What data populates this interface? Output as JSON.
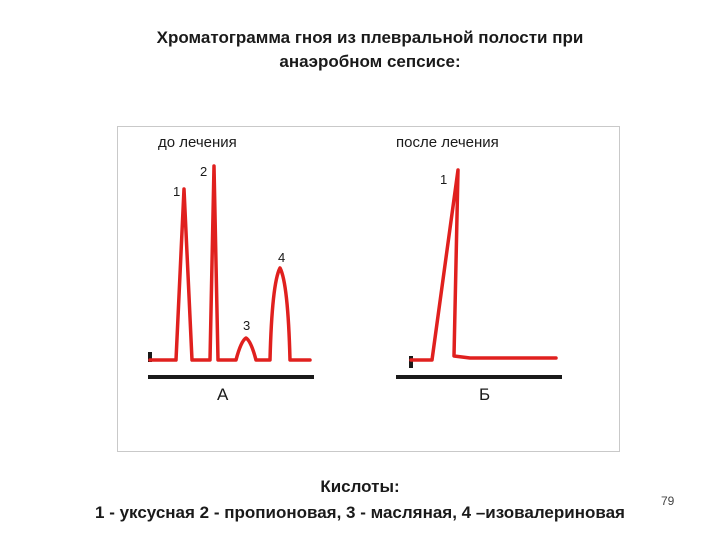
{
  "title": {
    "line1": "Хроматограмма гноя из плевральной полости при",
    "line2": "анаэробном сепсисе:"
  },
  "panels": {
    "before": {
      "label": "до лечения",
      "axis_letter": "А"
    },
    "after": {
      "label": "после лечения",
      "axis_letter": "Б"
    }
  },
  "peaks": {
    "before": [
      {
        "label": "1",
        "relative_height": 0.96
      },
      {
        "label": "2",
        "relative_height": 1.0
      },
      {
        "label": "3",
        "relative_height": 0.12
      },
      {
        "label": "4",
        "relative_height": 0.45
      }
    ],
    "after": [
      {
        "label": "1",
        "relative_height": 0.98
      }
    ]
  },
  "legend": {
    "heading": "Кислоты:",
    "items": "1 - уксусная  2 - пропионовая,  3 - масляная, 4 –изовалериновая"
  },
  "page_number": "79",
  "colors": {
    "trace": "#e0201e",
    "axis": "#1a1a1a",
    "frame": "#c9c9c9"
  }
}
